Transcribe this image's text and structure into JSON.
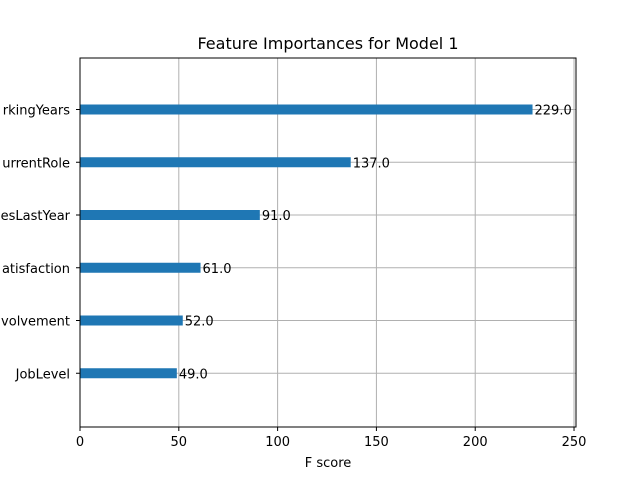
{
  "chart_data": {
    "type": "bar",
    "orientation": "horizontal",
    "title": "Feature Importances for Model 1",
    "xlabel": "F score",
    "ylabel": "",
    "categories": [
      "TotalWorkingYears",
      "YearsInCurrentRole",
      "NumCompaniesLastYear",
      "JobSatisfaction",
      "JobInvolvement",
      "JobLevel"
    ],
    "category_labels_visible": [
      "rkingYears",
      "urrentRole",
      "esLastYear",
      "atisfaction",
      "volvement",
      "JobLevel"
    ],
    "values": [
      229.0,
      137.0,
      91.0,
      61.0,
      52.0,
      49.0
    ],
    "value_labels": [
      "229.0",
      "137.0",
      "91.0",
      "61.0",
      "52.0",
      "49.0"
    ],
    "xlim": [
      0,
      251
    ],
    "xticks": [
      0,
      50,
      100,
      150,
      200,
      250
    ],
    "xtick_labels": [
      "0",
      "50",
      "100",
      "150",
      "200",
      "250"
    ],
    "grid": true,
    "bar_color": "#1f77b4"
  }
}
